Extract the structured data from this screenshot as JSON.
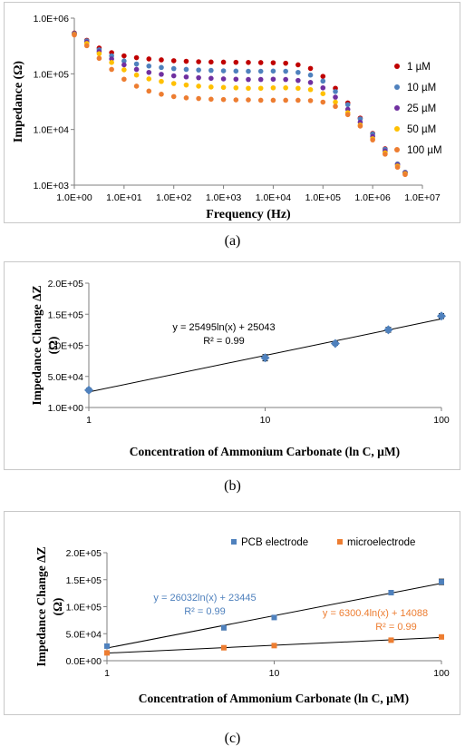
{
  "captions": {
    "a": "(a)",
    "b": "(b)",
    "c": "(c)"
  },
  "chart_data": [
    {
      "type": "scatter",
      "xscale": "log",
      "yscale": "log",
      "xlabel": "Frequency (Hz)",
      "ylabel": "Impedance (Ω)",
      "xlim": [
        1,
        10000000
      ],
      "ylim": [
        1000,
        1000000
      ],
      "xticks": [
        "1.0E+00",
        "1.0E+01",
        "1.0E+02",
        "1.0E+03",
        "1.0E+04",
        "1.0E+05",
        "1.0E+06",
        "1.0E+07"
      ],
      "yticks": [
        "1.0E+03",
        "1.0E+04",
        "1.0E+05",
        "1.0E+06"
      ],
      "legend_position": "right",
      "grid": false,
      "series": [
        {
          "name": "1 µM",
          "color": "#c00000",
          "x": [
            1,
            1.78,
            3.16,
            5.62,
            10,
            17.8,
            31.6,
            56.2,
            100,
            178,
            316,
            562,
            1000,
            1780,
            3160,
            5620,
            10000,
            17800,
            31600,
            56200,
            100000,
            178000,
            316000,
            562000,
            1000000,
            1780000,
            3160000,
            4500000
          ],
          "y": [
            540000,
            400000,
            290000,
            240000,
            210000,
            195000,
            185000,
            178000,
            172000,
            168000,
            165000,
            163000,
            162000,
            161000,
            160000,
            159000,
            158000,
            155000,
            145000,
            125000,
            90000,
            55000,
            30000,
            16000,
            8500,
            4500,
            2400,
            1700
          ]
        },
        {
          "name": "10 µM",
          "color": "#4f81bd",
          "x": [
            1,
            1.78,
            3.16,
            5.62,
            10,
            17.8,
            31.6,
            56.2,
            100,
            178,
            316,
            562,
            1000,
            1780,
            3160,
            5620,
            10000,
            17800,
            31600,
            56200,
            100000,
            178000,
            316000,
            562000,
            1000000,
            1780000,
            3160000,
            4500000
          ],
          "y": [
            530000,
            390000,
            270000,
            210000,
            170000,
            150000,
            138000,
            130000,
            124000,
            120000,
            117000,
            115000,
            113000,
            112000,
            111000,
            111000,
            112000,
            111000,
            106000,
            95000,
            74000,
            48000,
            28000,
            15500,
            8300,
            4400,
            2400,
            1700
          ]
        },
        {
          "name": "25 µM",
          "color": "#7030a0",
          "x": [
            1,
            1.78,
            3.16,
            5.62,
            10,
            17.8,
            31.6,
            56.2,
            100,
            178,
            316,
            562,
            1000,
            1780,
            3160,
            5620,
            10000,
            17800,
            31600,
            56200,
            100000,
            178000,
            316000,
            562000,
            1000000,
            1780000,
            3160000,
            4500000
          ],
          "y": [
            520000,
            370000,
            250000,
            185000,
            145000,
            120000,
            106000,
            98000,
            92000,
            88000,
            85000,
            83000,
            81000,
            80000,
            79000,
            79000,
            80000,
            79000,
            76000,
            70000,
            56000,
            38000,
            23000,
            13500,
            7500,
            4100,
            2300,
            1650
          ]
        },
        {
          "name": "50 µM",
          "color": "#ffc000",
          "x": [
            1,
            1.78,
            3.16,
            5.62,
            10,
            17.8,
            31.6,
            56.2,
            100,
            178,
            316,
            562,
            1000,
            1780,
            3160,
            5620,
            10000,
            17800,
            31600,
            56200,
            100000,
            178000,
            316000,
            562000,
            1000000,
            1780000,
            3160000,
            4500000
          ],
          "y": [
            510000,
            350000,
            230000,
            160000,
            118000,
            95000,
            81000,
            73000,
            67000,
            63000,
            60000,
            58000,
            57000,
            56000,
            55000,
            55000,
            56000,
            56000,
            55000,
            52000,
            44000,
            31000,
            20000,
            12000,
            6800,
            3800,
            2200,
            1600
          ]
        },
        {
          "name": "100 µM",
          "color": "#ed7d31",
          "x": [
            1,
            1.78,
            3.16,
            5.62,
            10,
            17.8,
            31.6,
            56.2,
            100,
            178,
            316,
            562,
            1000,
            1780,
            3160,
            5620,
            10000,
            17800,
            31600,
            56200,
            100000,
            178000,
            316000,
            562000,
            1000000,
            1780000,
            3160000,
            4500000
          ],
          "y": [
            500000,
            320000,
            190000,
            120000,
            80000,
            60000,
            49000,
            43000,
            39000,
            37000,
            36000,
            35000,
            34500,
            34000,
            34000,
            33500,
            33500,
            33500,
            33500,
            33000,
            31000,
            26000,
            18500,
            11500,
            6500,
            3600,
            2100,
            1550
          ]
        }
      ]
    },
    {
      "type": "scatter",
      "xscale": "log",
      "xlabel": "Concentration of Ammonium Carbonate (ln C, µM)",
      "ylabel": "Impedance Change ΔZ (Ω)",
      "xlim": [
        1,
        100
      ],
      "ylim": [
        1,
        200000
      ],
      "xticks": [
        "1",
        "10",
        "100"
      ],
      "yticks": [
        "1.0E+00",
        "5.0E+04",
        "1.0E+05",
        "1.5E+05",
        "2.0E+05"
      ],
      "grid": false,
      "series": [
        {
          "color": "#4f81bd",
          "marker": "diamond",
          "x": [
            1,
            10,
            25,
            50,
            100
          ],
          "y": [
            28000,
            80000,
            103000,
            125000,
            147000
          ],
          "error": [
            3000,
            5000,
            3000,
            4000,
            4000
          ]
        }
      ],
      "trendline": {
        "equation": "y = 25495ln(x) + 25043",
        "r2": "R² = 0.99",
        "color": "#000000",
        "slope": 25495,
        "intercept": 25043
      }
    },
    {
      "type": "scatter",
      "xscale": "log",
      "xlabel": "Concentration of Ammonium Carbonate (ln C, µM)",
      "ylabel": "Impedance Change ΔZ (Ω)",
      "xlim": [
        1,
        100
      ],
      "ylim": [
        0,
        200000
      ],
      "xticks": [
        "1",
        "10",
        "100"
      ],
      "yticks": [
        "0.0E+00",
        "5.0E+04",
        "1.0E+05",
        "1.5E+05",
        "2.0E+05"
      ],
      "legend_position": "top",
      "grid": false,
      "series": [
        {
          "name": "PCB electrode",
          "color": "#4f81bd",
          "marker": "square",
          "x": [
            1,
            5,
            10,
            50,
            100
          ],
          "y": [
            27000,
            61000,
            80000,
            126000,
            146000
          ],
          "error": [
            3000,
            4000,
            3000,
            4000,
            5000
          ],
          "trendline": {
            "equation": "y = 26032ln(x) + 23445",
            "r2": "R² = 0.99",
            "slope": 26032,
            "intercept": 23445
          }
        },
        {
          "name": "microelectrode",
          "color": "#ed7d31",
          "marker": "square",
          "x": [
            1,
            5,
            10,
            50,
            100
          ],
          "y": [
            14500,
            24000,
            28000,
            38000,
            44000
          ],
          "error": [
            1500,
            1500,
            1500,
            2000,
            2000
          ],
          "trendline": {
            "equation": "y = 6300.4ln(x) + 14088",
            "r2": "R² = 0.99",
            "slope": 6300.4,
            "intercept": 14088
          }
        }
      ]
    }
  ]
}
